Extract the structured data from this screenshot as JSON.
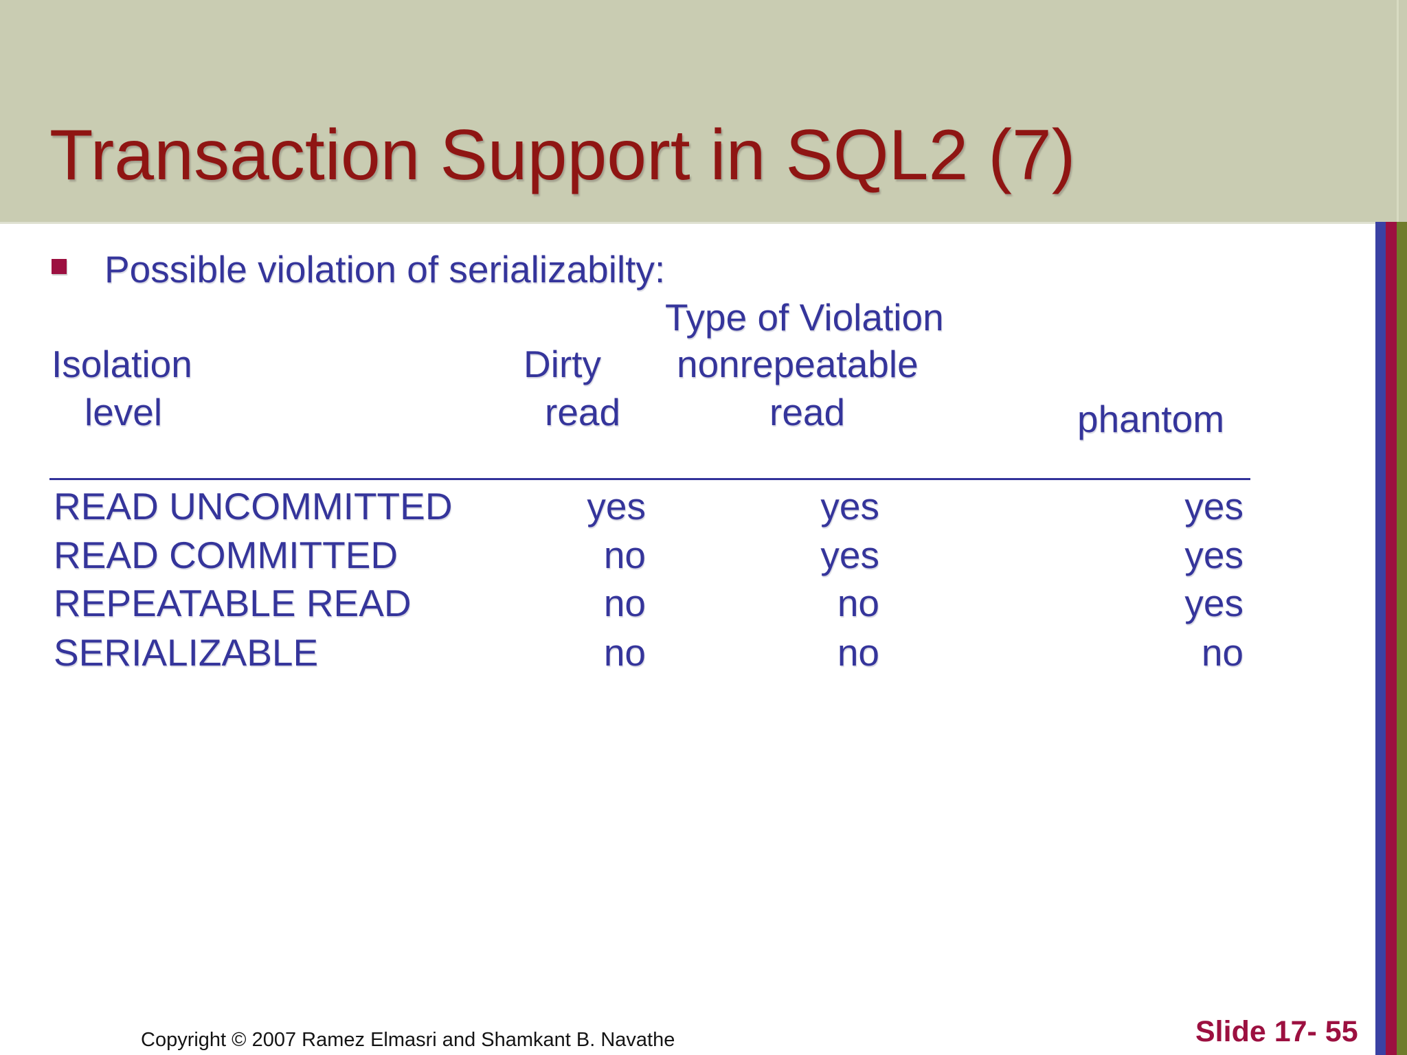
{
  "slide": {
    "title": "Transaction Support in SQL2 (7)",
    "bullet": "Possible violation of serializabilty:",
    "table": {
      "group_header": "Type of Violation",
      "header_row1": {
        "isolation": "Isolation",
        "dirty": "Dirty",
        "nonrepeatable": "nonrepeatable"
      },
      "header_row2": {
        "isolation": "level",
        "dirty": "read",
        "nonrepeatable": "read",
        "phantom": "phantom"
      },
      "rows": [
        {
          "level": "READ UNCOMMITTED",
          "dirty": "yes",
          "nonrepeatable": "yes",
          "phantom": "yes"
        },
        {
          "level": "READ COMMITTED",
          "dirty": "no",
          "nonrepeatable": "yes",
          "phantom": "yes"
        },
        {
          "level": "REPEATABLE READ",
          "dirty": "no",
          "nonrepeatable": "no",
          "phantom": "yes"
        },
        {
          "level": "SERIALIZABLE",
          "dirty": "no",
          "nonrepeatable": "no",
          "phantom": "no"
        }
      ]
    },
    "footer": {
      "copyright": "Copyright © 2007 Ramez Elmasri and Shamkant B. Navathe",
      "slide_number": "Slide 17- 55"
    },
    "colors": {
      "band_background": "#c9ccb2",
      "title_red": "#8f1513",
      "body_blue": "#35359b",
      "accent_crimson": "#9c1040",
      "stripe_blue": "#3a41a3",
      "stripe_olive": "#6f7c2b"
    }
  }
}
